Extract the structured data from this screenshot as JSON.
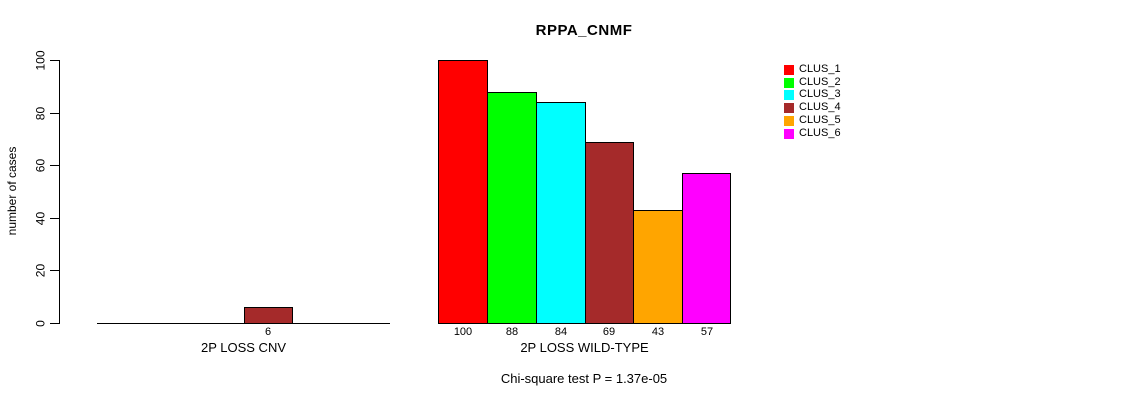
{
  "chart_data": {
    "type": "bar",
    "title": "RPPA_CNMF",
    "ylabel": "number of cases",
    "xlabel": "",
    "ylim": [
      0,
      100
    ],
    "yticks": [
      0,
      20,
      40,
      60,
      80,
      100
    ],
    "grid": false,
    "legend_position": "right",
    "legend_labels": [
      "CLUS_1",
      "CLUS_2",
      "CLUS_3",
      "CLUS_4",
      "CLUS_5",
      "CLUS_6"
    ],
    "series_colors": [
      "#ff0000",
      "#00ff00",
      "#00ffff",
      "#a52a2a",
      "#ffa500",
      "#ff00ff"
    ],
    "groups": [
      {
        "label": "2P LOSS CNV",
        "values": [
          0,
          0,
          0,
          6,
          0,
          0
        ],
        "bar_labels": [
          "",
          "",
          "",
          "6",
          "",
          ""
        ]
      },
      {
        "label": "2P LOSS WILD-TYPE",
        "values": [
          100,
          88,
          84,
          69,
          43,
          57
        ],
        "bar_labels": [
          "100",
          "88",
          "84",
          "69",
          "43",
          "57"
        ]
      }
    ],
    "annotation": "Chi-square test P = 1.37e-05"
  }
}
